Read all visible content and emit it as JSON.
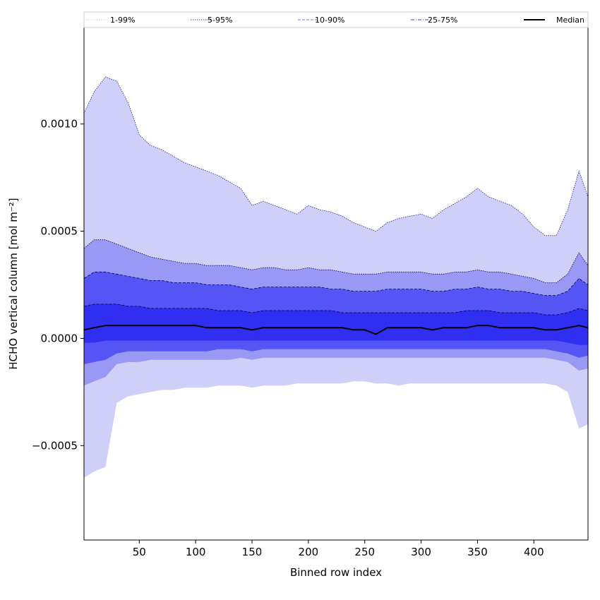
{
  "chart_data": {
    "type": "area",
    "title": "",
    "xlabel": "Binned row index",
    "ylabel": "HCHO vertical column [mol m⁻²]",
    "xlim": [
      1,
      448
    ],
    "ylim": [
      -0.00094,
      0.00145
    ],
    "xticks": [
      50,
      100,
      150,
      200,
      250,
      300,
      350,
      400
    ],
    "xtick_labels": [
      "50",
      "100",
      "150",
      "200",
      "250",
      "300",
      "350",
      "400"
    ],
    "yticks": [
      -0.0005,
      0.0,
      0.0005,
      0.001
    ],
    "ytick_labels": [
      "−0.0005",
      "0.0000",
      "0.0005",
      "0.0010"
    ],
    "grid": false,
    "legend_position": "top",
    "legend": [
      {
        "label": "1-99%",
        "color": "#c8c8f0",
        "style": "dotted"
      },
      {
        "label": "5-95%",
        "color": "#3030b0",
        "style": "dotted"
      },
      {
        "label": "10-90%",
        "color": "#7070e0",
        "style": "dashed"
      },
      {
        "label": "25-75%",
        "color": "#4040c8",
        "style": "dashdot"
      },
      {
        "label": "Median",
        "color": "#000000",
        "style": "solid"
      }
    ],
    "x": [
      1,
      10,
      20,
      30,
      40,
      50,
      60,
      70,
      80,
      90,
      100,
      110,
      120,
      130,
      140,
      150,
      160,
      170,
      180,
      190,
      200,
      210,
      220,
      230,
      240,
      250,
      260,
      270,
      280,
      290,
      300,
      310,
      320,
      330,
      340,
      350,
      360,
      370,
      380,
      390,
      400,
      410,
      420,
      430,
      440,
      448
    ],
    "bands": [
      {
        "name": "1-99%",
        "color": "#cfcff8",
        "upper": [
          0.00105,
          0.00115,
          0.00122,
          0.0012,
          0.0011,
          0.00095,
          0.0009,
          0.00088,
          0.00085,
          0.00082,
          0.0008,
          0.00078,
          0.00076,
          0.00073,
          0.0007,
          0.00062,
          0.00064,
          0.00062,
          0.0006,
          0.00058,
          0.00062,
          0.0006,
          0.00059,
          0.00057,
          0.00054,
          0.00052,
          0.0005,
          0.00054,
          0.00056,
          0.00057,
          0.00058,
          0.00056,
          0.0006,
          0.00063,
          0.00066,
          0.0007,
          0.00066,
          0.00064,
          0.00062,
          0.00058,
          0.00052,
          0.00048,
          0.00048,
          0.0006,
          0.00078,
          0.00066
        ],
        "lower": [
          -0.00065,
          -0.00062,
          -0.0006,
          -0.0003,
          -0.00027,
          -0.00026,
          -0.00025,
          -0.00024,
          -0.00024,
          -0.00023,
          -0.00023,
          -0.00023,
          -0.00022,
          -0.00022,
          -0.00022,
          -0.00023,
          -0.00022,
          -0.00022,
          -0.00022,
          -0.00021,
          -0.00021,
          -0.00021,
          -0.00021,
          -0.00021,
          -0.0002,
          -0.0002,
          -0.00021,
          -0.00021,
          -0.00022,
          -0.00021,
          -0.00021,
          -0.00021,
          -0.00021,
          -0.00021,
          -0.00021,
          -0.00021,
          -0.00021,
          -0.00021,
          -0.00021,
          -0.00021,
          -0.00021,
          -0.00021,
          -0.00022,
          -0.00025,
          -0.00042,
          -0.0004
        ]
      },
      {
        "name": "5-95%",
        "color": "#9999f5",
        "upper": [
          0.00042,
          0.00046,
          0.00046,
          0.00044,
          0.00042,
          0.0004,
          0.00038,
          0.00037,
          0.00036,
          0.00035,
          0.00035,
          0.00034,
          0.00034,
          0.00034,
          0.00033,
          0.00032,
          0.00033,
          0.00033,
          0.00032,
          0.00032,
          0.00033,
          0.00032,
          0.00032,
          0.00031,
          0.0003,
          0.0003,
          0.0003,
          0.00031,
          0.00031,
          0.00031,
          0.00031,
          0.0003,
          0.0003,
          0.00031,
          0.00031,
          0.00032,
          0.00031,
          0.00031,
          0.0003,
          0.00029,
          0.00028,
          0.00026,
          0.00026,
          0.0003,
          0.0004,
          0.00034
        ],
        "lower": [
          -0.00022,
          -0.0002,
          -0.00018,
          -0.00012,
          -0.00011,
          -0.00011,
          -0.0001,
          -0.0001,
          -0.0001,
          -0.0001,
          -0.0001,
          -0.0001,
          -0.0001,
          -0.0001,
          -9e-05,
          -0.0001,
          -9e-05,
          -9e-05,
          -9e-05,
          -9e-05,
          -9e-05,
          -9e-05,
          -9e-05,
          -9e-05,
          -9e-05,
          -9e-05,
          -9e-05,
          -9e-05,
          -9e-05,
          -9e-05,
          -9e-05,
          -9e-05,
          -9e-05,
          -9e-05,
          -9e-05,
          -9e-05,
          -9e-05,
          -9e-05,
          -9e-05,
          -9e-05,
          -9e-05,
          -9e-05,
          -0.0001,
          -0.00011,
          -0.00015,
          -0.00014
        ]
      },
      {
        "name": "10-90%",
        "color": "#5555f5",
        "upper": [
          0.00028,
          0.00031,
          0.00031,
          0.0003,
          0.00029,
          0.00028,
          0.00027,
          0.00027,
          0.00026,
          0.00026,
          0.00026,
          0.00025,
          0.00025,
          0.00025,
          0.00024,
          0.00023,
          0.00024,
          0.00024,
          0.00024,
          0.00024,
          0.00024,
          0.00024,
          0.00023,
          0.00023,
          0.00022,
          0.00022,
          0.00022,
          0.00023,
          0.00023,
          0.00023,
          0.00023,
          0.00022,
          0.00022,
          0.00023,
          0.00023,
          0.00024,
          0.00023,
          0.00023,
          0.00022,
          0.00022,
          0.00021,
          0.0002,
          0.0002,
          0.00022,
          0.00028,
          0.00025
        ],
        "lower": [
          -0.00012,
          -0.00011,
          -0.0001,
          -7e-05,
          -6e-05,
          -6e-05,
          -6e-05,
          -6e-05,
          -6e-05,
          -6e-05,
          -6e-05,
          -6e-05,
          -5e-05,
          -5e-05,
          -5e-05,
          -6e-05,
          -5e-05,
          -5e-05,
          -5e-05,
          -5e-05,
          -5e-05,
          -5e-05,
          -5e-05,
          -5e-05,
          -5e-05,
          -5e-05,
          -5e-05,
          -5e-05,
          -5e-05,
          -5e-05,
          -5e-05,
          -5e-05,
          -5e-05,
          -5e-05,
          -5e-05,
          -5e-05,
          -5e-05,
          -5e-05,
          -5e-05,
          -5e-05,
          -5e-05,
          -5e-05,
          -6e-05,
          -7e-05,
          -9e-05,
          -8e-05
        ]
      },
      {
        "name": "25-75%",
        "color": "#2f2ff2",
        "upper": [
          0.00015,
          0.00016,
          0.00016,
          0.00016,
          0.00015,
          0.00015,
          0.00014,
          0.00014,
          0.00014,
          0.00014,
          0.00014,
          0.00014,
          0.00013,
          0.00013,
          0.00013,
          0.00012,
          0.00013,
          0.00013,
          0.00013,
          0.00013,
          0.00013,
          0.00013,
          0.00013,
          0.00012,
          0.00012,
          0.00012,
          0.00012,
          0.00012,
          0.00012,
          0.00012,
          0.00012,
          0.00012,
          0.00012,
          0.00012,
          0.00013,
          0.00013,
          0.00013,
          0.00012,
          0.00012,
          0.00012,
          0.00012,
          0.00011,
          0.00011,
          0.00012,
          0.00014,
          0.00013
        ],
        "lower": [
          -2e-05,
          -2e-05,
          -1e-05,
          -1e-05,
          -1e-05,
          -1e-05,
          -1e-05,
          -1e-05,
          -1e-05,
          -1e-05,
          -1e-05,
          -1e-05,
          -1e-05,
          -1e-05,
          -1e-05,
          -1e-05,
          -1e-05,
          -1e-05,
          -1e-05,
          -1e-05,
          -1e-05,
          -1e-05,
          -1e-05,
          -1e-05,
          -1e-05,
          -1e-05,
          -1e-05,
          -1e-05,
          -1e-05,
          -1e-05,
          -1e-05,
          -1e-05,
          -1e-05,
          -1e-05,
          -1e-05,
          -1e-05,
          -1e-05,
          -1e-05,
          -1e-05,
          -1e-05,
          -1e-05,
          -1e-05,
          -1e-05,
          -2e-05,
          -3e-05,
          -3e-05
        ]
      }
    ],
    "median": [
      4e-05,
      5e-05,
      6e-05,
      6e-05,
      6e-05,
      6e-05,
      6e-05,
      6e-05,
      6e-05,
      6e-05,
      6e-05,
      5e-05,
      5e-05,
      5e-05,
      5e-05,
      4e-05,
      5e-05,
      5e-05,
      5e-05,
      5e-05,
      5e-05,
      5e-05,
      5e-05,
      5e-05,
      4e-05,
      4e-05,
      2e-05,
      5e-05,
      5e-05,
      5e-05,
      5e-05,
      4e-05,
      5e-05,
      5e-05,
      5e-05,
      6e-05,
      6e-05,
      5e-05,
      5e-05,
      5e-05,
      5e-05,
      4e-05,
      4e-05,
      5e-05,
      6e-05,
      5e-05
    ]
  }
}
